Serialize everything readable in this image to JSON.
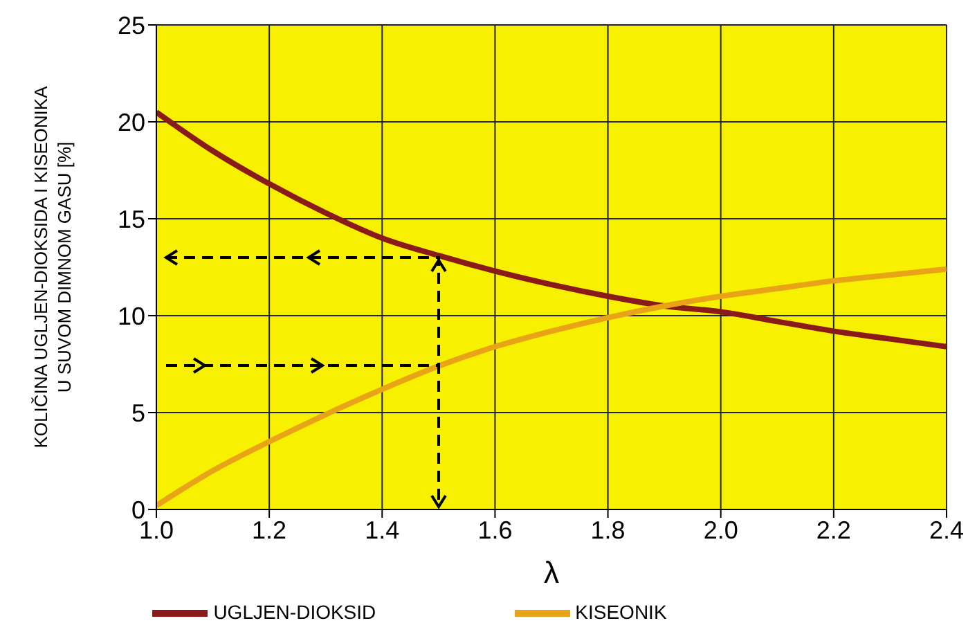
{
  "chart_data": {
    "type": "line",
    "xlabel": "λ",
    "ylabel": "KOLIČINA UGLJEN-DIOKSIDA I KISEONIKA U SUVOM DIMNOM GASU [%]",
    "x": [
      1.0,
      1.1,
      1.2,
      1.3,
      1.4,
      1.5,
      1.6,
      1.7,
      1.8,
      1.9,
      2.0,
      2.1,
      2.2,
      2.3,
      2.4
    ],
    "series": [
      {
        "name": "UGLJEN-DIOKSID",
        "color": "#8b1a1a",
        "values": [
          20.5,
          18.5,
          16.8,
          15.3,
          14.0,
          13.1,
          12.3,
          11.6,
          11.0,
          10.5,
          10.2,
          9.7,
          9.2,
          8.8,
          8.4
        ]
      },
      {
        "name": "KISEONIK",
        "color": "#e8a317",
        "values": [
          0.2,
          2.0,
          3.5,
          4.9,
          6.2,
          7.4,
          8.4,
          9.2,
          9.9,
          10.5,
          11.0,
          11.4,
          11.8,
          12.1,
          12.4
        ]
      }
    ],
    "xlim": [
      1.0,
      2.4
    ],
    "xticks": [
      {
        "value": 1.0,
        "label": "1.0"
      },
      1.2,
      1.4,
      1.6,
      1.8,
      {
        "value": 2.0,
        "label": "2.0"
      },
      2.2,
      2.4
    ],
    "ylim": [
      0,
      25
    ],
    "yticks": [
      0,
      5,
      10,
      15,
      20,
      25
    ],
    "grid": true,
    "legend": "bottom",
    "marker": "none",
    "line_style": "solid"
  }
}
